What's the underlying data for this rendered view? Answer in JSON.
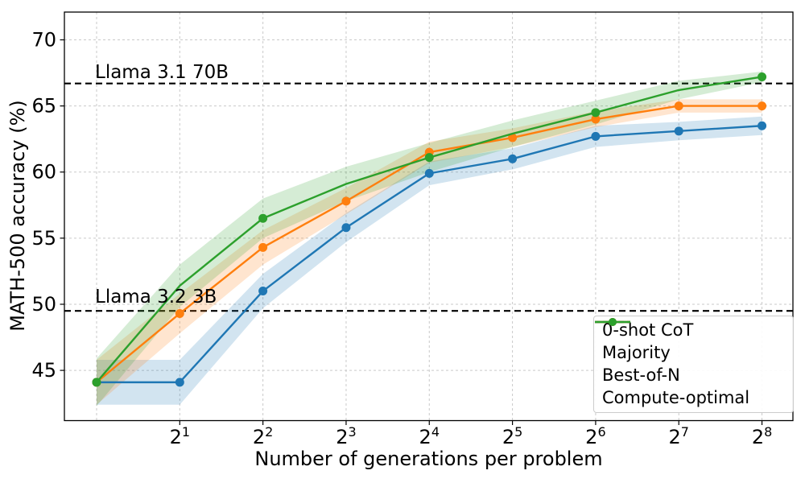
{
  "chart_data": {
    "type": "line",
    "title": "",
    "xlabel": "Number of generations per problem",
    "ylabel": "MATH-500 accuracy (%)",
    "x_scale": "log2",
    "x": [
      1,
      2,
      4,
      8,
      16,
      32,
      64,
      128,
      256
    ],
    "x_tick_base": "2",
    "x_tick_exponents": [
      1,
      2,
      3,
      4,
      5,
      6,
      7,
      8
    ],
    "x_grid_exponents": [
      0,
      1,
      2,
      3,
      4,
      5,
      6,
      7,
      8
    ],
    "y_ticks": [
      45,
      50,
      55,
      60,
      65,
      70
    ],
    "xlim_exponents": [
      -0.387,
      8.372
    ],
    "ylim": [
      41.2,
      72.1
    ],
    "grid": true,
    "series": [
      {
        "name": "Majority",
        "color": "#1f77b4",
        "marker_every": 1,
        "values": [
          44.1,
          44.1,
          51.0,
          55.8,
          59.9,
          61.0,
          62.7,
          63.1,
          63.5
        ],
        "band_halfwidth": [
          1.7,
          1.7,
          1.3,
          1.1,
          0.9,
          0.8,
          0.8,
          0.7,
          0.7
        ]
      },
      {
        "name": "Best-of-N",
        "color": "#ff7f0e",
        "marker_every": 1,
        "values": [
          44.1,
          49.3,
          54.3,
          57.8,
          61.5,
          62.6,
          64.0,
          65.0,
          65.0
        ],
        "band_halfwidth": [
          1.7,
          1.5,
          1.3,
          1.0,
          0.8,
          0.7,
          0.6,
          0.5,
          0.5
        ]
      },
      {
        "name": "Compute-optimal",
        "color": "#2ca02c",
        "marker_every": 2,
        "values": [
          44.1,
          51.4,
          56.5,
          59.1,
          61.1,
          62.9,
          64.5,
          66.2,
          67.2
        ],
        "band_halfwidth": [
          1.8,
          1.6,
          1.5,
          1.3,
          1.1,
          1.0,
          0.9,
          0.7,
          0.4
        ]
      }
    ],
    "hlines": [
      {
        "label": "Llama 3.1 70B",
        "y": 66.7,
        "color": "#000000",
        "style": "dashed"
      },
      {
        "label": "Llama 3.2 3B",
        "y": 49.5,
        "color": "#000000",
        "style": "dashed"
      }
    ],
    "legend": {
      "position": "lower right",
      "entries": [
        {
          "label": "0-shot CoT",
          "color": "#000000",
          "style": "dashed",
          "marker": false
        },
        {
          "label": "Majority",
          "color": "#1f77b4",
          "style": "solid",
          "marker": true
        },
        {
          "label": "Best-of-N",
          "color": "#ff7f0e",
          "style": "solid",
          "marker": true
        },
        {
          "label": "Compute-optimal",
          "color": "#2ca02c",
          "style": "solid",
          "marker": true
        }
      ]
    },
    "colors": {
      "grid": "#c9c9c9",
      "spine": "#000000",
      "background": "#ffffff"
    }
  }
}
